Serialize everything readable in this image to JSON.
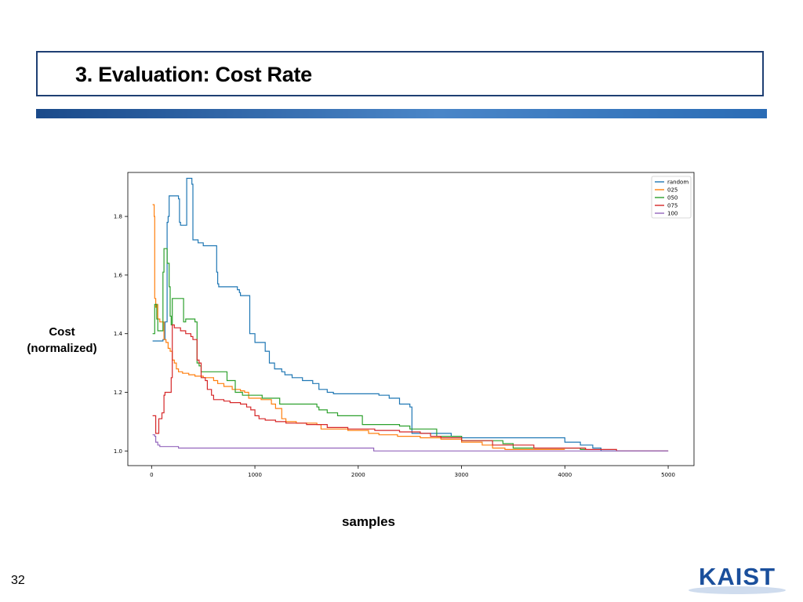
{
  "slide": {
    "title": "3. Evaluation: Cost Rate",
    "ylabel_line1": "Cost",
    "ylabel_line2": "(normalized)",
    "xlabel": "samples",
    "page_number": "32",
    "logo_text": "KAIST"
  },
  "colors": {
    "title_border": "#1f3f73",
    "bar_start": "#1a4a8a",
    "bar_end": "#2a6cb5",
    "logo": "#1a4f9c"
  },
  "chart_data": {
    "type": "line",
    "step": true,
    "xlim": [
      -230,
      5250
    ],
    "ylim": [
      0.95,
      1.95
    ],
    "xticks": [
      0,
      1000,
      2000,
      3000,
      4000,
      5000
    ],
    "yticks": [
      1.0,
      1.2,
      1.4,
      1.6,
      1.8
    ],
    "ytick_labels": [
      "1.0",
      "1.2",
      "1.4",
      "1.6",
      "1.8"
    ],
    "grid": false,
    "legend_position": "top-right",
    "series": [
      {
        "name": "random",
        "color": "#1f77b4",
        "points": [
          [
            10,
            1.375
          ],
          [
            100,
            1.375
          ],
          [
            110,
            1.38
          ],
          [
            130,
            1.44
          ],
          [
            150,
            1.78
          ],
          [
            160,
            1.8
          ],
          [
            170,
            1.87
          ],
          [
            240,
            1.87
          ],
          [
            260,
            1.86
          ],
          [
            270,
            1.78
          ],
          [
            280,
            1.77
          ],
          [
            320,
            1.77
          ],
          [
            340,
            1.93
          ],
          [
            380,
            1.93
          ],
          [
            390,
            1.91
          ],
          [
            400,
            1.72
          ],
          [
            450,
            1.71
          ],
          [
            500,
            1.7
          ],
          [
            620,
            1.7
          ],
          [
            630,
            1.61
          ],
          [
            640,
            1.57
          ],
          [
            650,
            1.56
          ],
          [
            820,
            1.56
          ],
          [
            830,
            1.55
          ],
          [
            850,
            1.54
          ],
          [
            860,
            1.53
          ],
          [
            930,
            1.53
          ],
          [
            950,
            1.4
          ],
          [
            1000,
            1.37
          ],
          [
            1100,
            1.34
          ],
          [
            1140,
            1.3
          ],
          [
            1190,
            1.28
          ],
          [
            1260,
            1.27
          ],
          [
            1290,
            1.26
          ],
          [
            1360,
            1.25
          ],
          [
            1460,
            1.24
          ],
          [
            1560,
            1.23
          ],
          [
            1620,
            1.21
          ],
          [
            1700,
            1.2
          ],
          [
            1760,
            1.195
          ],
          [
            2100,
            1.195
          ],
          [
            2200,
            1.19
          ],
          [
            2300,
            1.18
          ],
          [
            2400,
            1.16
          ],
          [
            2500,
            1.15
          ],
          [
            2520,
            1.06
          ],
          [
            2800,
            1.06
          ],
          [
            2900,
            1.05
          ],
          [
            3000,
            1.045
          ],
          [
            3900,
            1.045
          ],
          [
            4000,
            1.03
          ],
          [
            4150,
            1.02
          ],
          [
            4270,
            1.01
          ],
          [
            4350,
            1.0
          ],
          [
            5000,
            1.0
          ]
        ]
      },
      {
        "name": "025",
        "color": "#ff7f0e",
        "points": [
          [
            10,
            1.84
          ],
          [
            25,
            1.8
          ],
          [
            30,
            1.52
          ],
          [
            40,
            1.49
          ],
          [
            45,
            1.5
          ],
          [
            60,
            1.45
          ],
          [
            80,
            1.44
          ],
          [
            100,
            1.44
          ],
          [
            120,
            1.38
          ],
          [
            140,
            1.37
          ],
          [
            160,
            1.35
          ],
          [
            180,
            1.34
          ],
          [
            200,
            1.31
          ],
          [
            220,
            1.3
          ],
          [
            240,
            1.28
          ],
          [
            260,
            1.27
          ],
          [
            300,
            1.265
          ],
          [
            360,
            1.26
          ],
          [
            420,
            1.255
          ],
          [
            500,
            1.25
          ],
          [
            600,
            1.24
          ],
          [
            640,
            1.23
          ],
          [
            700,
            1.22
          ],
          [
            780,
            1.21
          ],
          [
            860,
            1.205
          ],
          [
            900,
            1.2
          ],
          [
            940,
            1.18
          ],
          [
            1060,
            1.175
          ],
          [
            1160,
            1.16
          ],
          [
            1200,
            1.145
          ],
          [
            1260,
            1.11
          ],
          [
            1300,
            1.1
          ],
          [
            1400,
            1.095
          ],
          [
            1600,
            1.09
          ],
          [
            1640,
            1.075
          ],
          [
            1900,
            1.07
          ],
          [
            2000,
            1.07
          ],
          [
            2100,
            1.06
          ],
          [
            2200,
            1.055
          ],
          [
            2380,
            1.05
          ],
          [
            2600,
            1.045
          ],
          [
            2800,
            1.04
          ],
          [
            3000,
            1.03
          ],
          [
            3200,
            1.02
          ],
          [
            3300,
            1.01
          ],
          [
            3420,
            1.005
          ],
          [
            4000,
            1.005
          ]
        ]
      },
      {
        "name": "050",
        "color": "#2ca02c",
        "points": [
          [
            10,
            1.4
          ],
          [
            30,
            1.5
          ],
          [
            50,
            1.45
          ],
          [
            60,
            1.41
          ],
          [
            100,
            1.41
          ],
          [
            110,
            1.61
          ],
          [
            120,
            1.69
          ],
          [
            140,
            1.69
          ],
          [
            150,
            1.64
          ],
          [
            170,
            1.56
          ],
          [
            180,
            1.46
          ],
          [
            190,
            1.43
          ],
          [
            200,
            1.52
          ],
          [
            300,
            1.52
          ],
          [
            310,
            1.44
          ],
          [
            330,
            1.45
          ],
          [
            400,
            1.45
          ],
          [
            420,
            1.44
          ],
          [
            440,
            1.3
          ],
          [
            460,
            1.29
          ],
          [
            480,
            1.27
          ],
          [
            720,
            1.27
          ],
          [
            730,
            1.24
          ],
          [
            800,
            1.24
          ],
          [
            810,
            1.2
          ],
          [
            860,
            1.2
          ],
          [
            880,
            1.19
          ],
          [
            1060,
            1.19
          ],
          [
            1070,
            1.18
          ],
          [
            1200,
            1.18
          ],
          [
            1240,
            1.16
          ],
          [
            1500,
            1.16
          ],
          [
            1600,
            1.15
          ],
          [
            1620,
            1.14
          ],
          [
            1700,
            1.13
          ],
          [
            1760,
            1.13
          ],
          [
            1800,
            1.12
          ],
          [
            2020,
            1.12
          ],
          [
            2040,
            1.09
          ],
          [
            2400,
            1.085
          ],
          [
            2500,
            1.075
          ],
          [
            2750,
            1.075
          ],
          [
            2760,
            1.05
          ],
          [
            3000,
            1.035
          ],
          [
            3400,
            1.025
          ],
          [
            3500,
            1.01
          ],
          [
            4150,
            1.005
          ],
          [
            4200,
            1.005
          ]
        ]
      },
      {
        "name": "075",
        "color": "#d62728",
        "points": [
          [
            10,
            1.12
          ],
          [
            30,
            1.12
          ],
          [
            40,
            1.06
          ],
          [
            60,
            1.06
          ],
          [
            70,
            1.11
          ],
          [
            90,
            1.11
          ],
          [
            100,
            1.13
          ],
          [
            110,
            1.13
          ],
          [
            120,
            1.19
          ],
          [
            130,
            1.2
          ],
          [
            180,
            1.2
          ],
          [
            190,
            1.25
          ],
          [
            200,
            1.43
          ],
          [
            210,
            1.43
          ],
          [
            220,
            1.42
          ],
          [
            260,
            1.42
          ],
          [
            280,
            1.41
          ],
          [
            330,
            1.4
          ],
          [
            380,
            1.39
          ],
          [
            400,
            1.38
          ],
          [
            440,
            1.31
          ],
          [
            460,
            1.3
          ],
          [
            480,
            1.25
          ],
          [
            520,
            1.24
          ],
          [
            540,
            1.21
          ],
          [
            580,
            1.19
          ],
          [
            600,
            1.175
          ],
          [
            700,
            1.17
          ],
          [
            760,
            1.165
          ],
          [
            860,
            1.16
          ],
          [
            920,
            1.15
          ],
          [
            960,
            1.14
          ],
          [
            1000,
            1.12
          ],
          [
            1040,
            1.11
          ],
          [
            1100,
            1.105
          ],
          [
            1200,
            1.1
          ],
          [
            1300,
            1.095
          ],
          [
            1500,
            1.09
          ],
          [
            1700,
            1.08
          ],
          [
            1900,
            1.075
          ],
          [
            2000,
            1.075
          ],
          [
            2160,
            1.07
          ],
          [
            2300,
            1.07
          ],
          [
            2400,
            1.065
          ],
          [
            2600,
            1.06
          ],
          [
            2700,
            1.05
          ],
          [
            2800,
            1.045
          ],
          [
            3000,
            1.035
          ],
          [
            3300,
            1.02
          ],
          [
            3700,
            1.01
          ],
          [
            4200,
            1.005
          ],
          [
            4500,
            1.0
          ],
          [
            5000,
            1.0
          ]
        ]
      },
      {
        "name": "100",
        "color": "#9467bd",
        "points": [
          [
            10,
            1.055
          ],
          [
            30,
            1.05
          ],
          [
            40,
            1.03
          ],
          [
            60,
            1.02
          ],
          [
            80,
            1.015
          ],
          [
            250,
            1.015
          ],
          [
            260,
            1.01
          ],
          [
            2100,
            1.01
          ],
          [
            2150,
            1.0
          ],
          [
            5000,
            1.0
          ]
        ]
      }
    ]
  }
}
